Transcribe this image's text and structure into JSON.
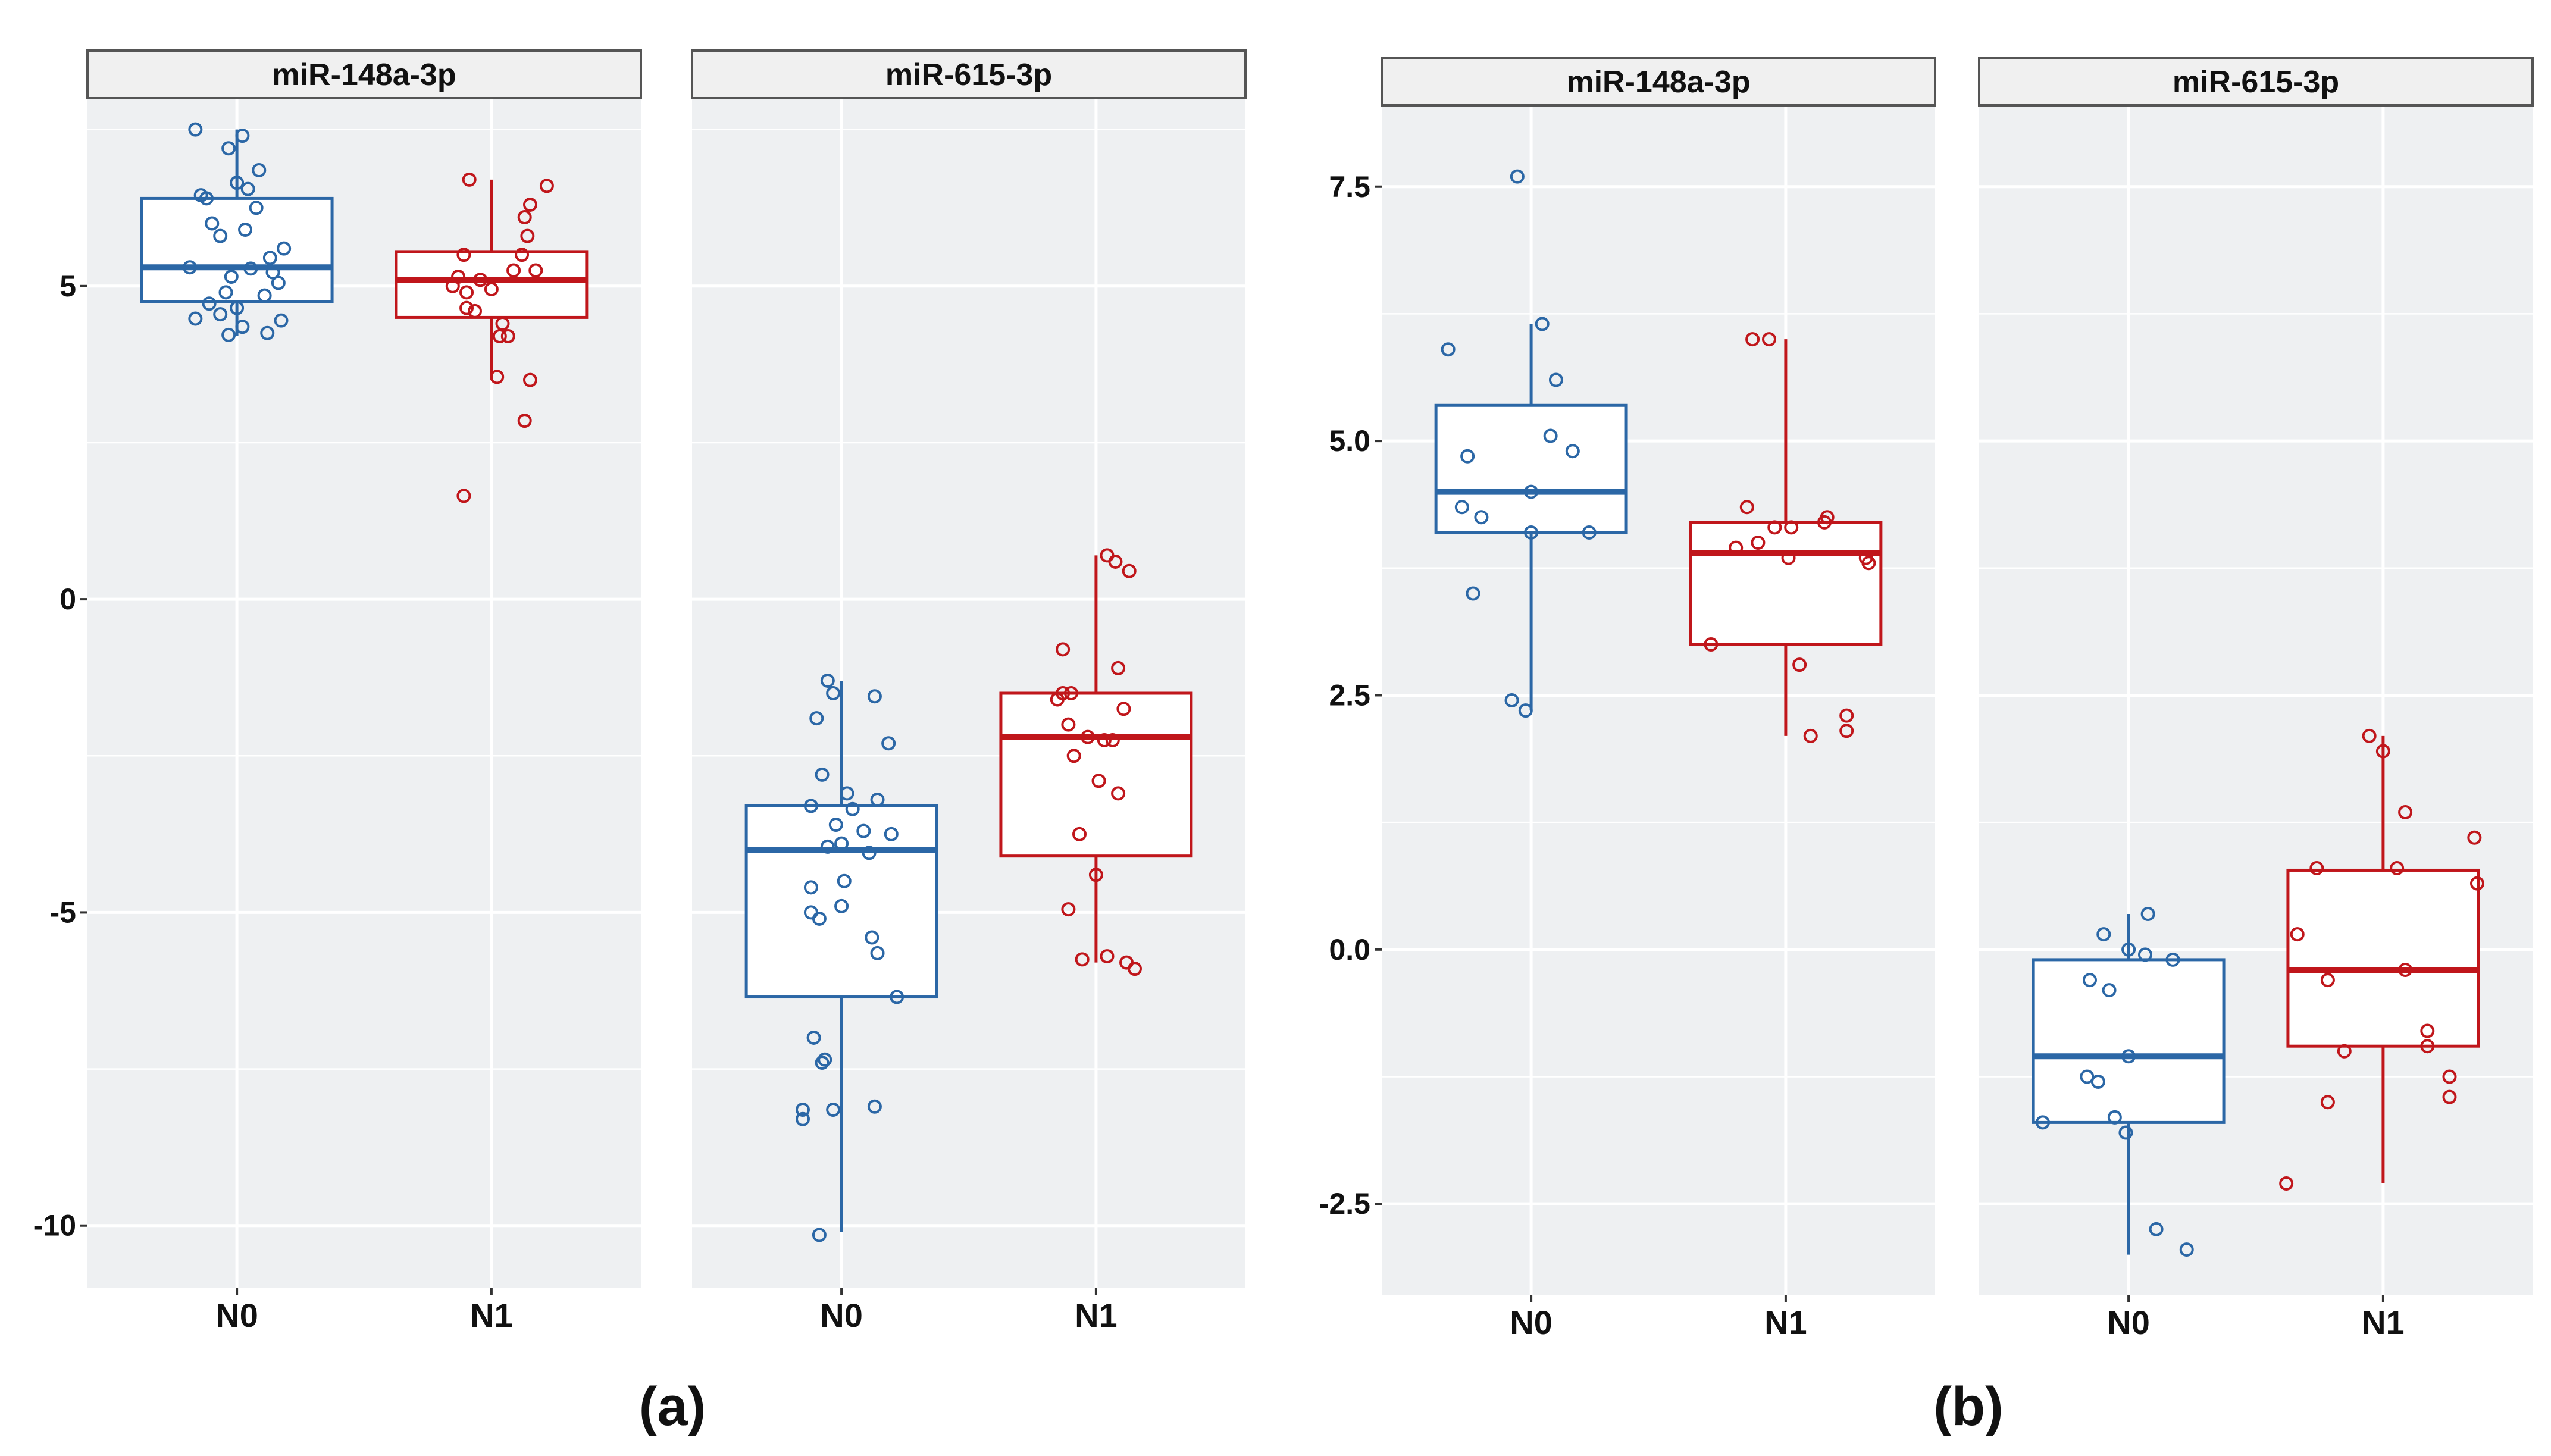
{
  "colors": {
    "n0": "#2b67a6",
    "n1": "#c0161b",
    "panel_bg": "#eef0f2",
    "grid": "#ffffff",
    "strip_bg": "#f0f0f0",
    "strip_border": "#555555"
  },
  "figure_labels": [
    "(a)",
    "(b)"
  ],
  "chart_data": [
    {
      "type": "box",
      "figure_label": "(a)",
      "facet": "miR-148a-3p",
      "categories": [
        "N0",
        "N1"
      ],
      "y_ticks": [
        5,
        0,
        -5,
        -10
      ],
      "ylim": [
        -11,
        8
      ],
      "grid": true,
      "series": [
        {
          "group": "N0",
          "color": "#2b67a6",
          "box": {
            "q1": 4.75,
            "median": 5.3,
            "q3": 6.4,
            "whisker_low": 4.2,
            "whisker_high": 7.5
          },
          "points": [
            [
              -0.15,
              7.5
            ],
            [
              0.02,
              7.4
            ],
            [
              -0.03,
              7.2
            ],
            [
              0.08,
              6.85
            ],
            [
              0.0,
              6.65
            ],
            [
              0.04,
              6.55
            ],
            [
              -0.13,
              6.45
            ],
            [
              -0.11,
              6.4
            ],
            [
              0.07,
              6.25
            ],
            [
              -0.09,
              6.0
            ],
            [
              0.03,
              5.9
            ],
            [
              -0.06,
              5.8
            ],
            [
              0.17,
              5.6
            ],
            [
              0.12,
              5.45
            ],
            [
              -0.17,
              5.3
            ],
            [
              0.05,
              5.28
            ],
            [
              0.13,
              5.22
            ],
            [
              -0.02,
              5.15
            ],
            [
              0.15,
              5.05
            ],
            [
              -0.04,
              4.9
            ],
            [
              0.1,
              4.85
            ],
            [
              -0.1,
              4.72
            ],
            [
              0.0,
              4.65
            ],
            [
              -0.06,
              4.55
            ],
            [
              -0.15,
              4.48
            ],
            [
              0.16,
              4.45
            ],
            [
              0.02,
              4.35
            ],
            [
              -0.03,
              4.22
            ],
            [
              0.11,
              4.25
            ]
          ]
        },
        {
          "group": "N1",
          "color": "#c0161b",
          "box": {
            "q1": 4.5,
            "median": 5.1,
            "q3": 5.55,
            "whisker_low": 3.5,
            "whisker_high": 6.7
          },
          "points": [
            [
              -0.08,
              6.7
            ],
            [
              0.2,
              6.6
            ],
            [
              0.14,
              6.3
            ],
            [
              0.12,
              6.1
            ],
            [
              0.13,
              5.8
            ],
            [
              0.11,
              5.5
            ],
            [
              -0.1,
              5.5
            ],
            [
              0.16,
              5.25
            ],
            [
              0.08,
              5.25
            ],
            [
              -0.12,
              5.15
            ],
            [
              -0.04,
              5.1
            ],
            [
              -0.09,
              4.9
            ],
            [
              -0.14,
              5.0
            ],
            [
              0.0,
              4.95
            ],
            [
              -0.09,
              4.65
            ],
            [
              -0.06,
              4.6
            ],
            [
              0.04,
              4.4
            ],
            [
              0.03,
              4.2
            ],
            [
              0.06,
              4.2
            ],
            [
              0.14,
              3.5
            ],
            [
              0.02,
              3.55
            ],
            [
              0.12,
              2.85
            ],
            [
              -0.1,
              1.65
            ]
          ]
        }
      ]
    },
    {
      "type": "box",
      "figure_label": "(a)",
      "facet": "miR-615-3p",
      "categories": [
        "N0",
        "N1"
      ],
      "y_ticks": [
        5,
        0,
        -5,
        -10
      ],
      "ylim": [
        -11,
        8
      ],
      "grid": true,
      "series": [
        {
          "group": "N0",
          "color": "#2b67a6",
          "box": {
            "q1": -6.35,
            "median": -4.0,
            "q3": -3.3,
            "whisker_low": -10.1,
            "whisker_high": -1.3
          },
          "points": [
            [
              -0.05,
              -1.3
            ],
            [
              -0.03,
              -1.5
            ],
            [
              0.12,
              -1.55
            ],
            [
              -0.09,
              -1.9
            ],
            [
              0.17,
              -2.3
            ],
            [
              -0.07,
              -2.8
            ],
            [
              0.02,
              -3.1
            ],
            [
              0.13,
              -3.2
            ],
            [
              -0.11,
              -3.3
            ],
            [
              0.04,
              -3.35
            ],
            [
              -0.02,
              -3.6
            ],
            [
              0.08,
              -3.7
            ],
            [
              0.18,
              -3.75
            ],
            [
              0.0,
              -3.9
            ],
            [
              -0.05,
              -3.95
            ],
            [
              0.1,
              -4.05
            ],
            [
              -0.11,
              -4.6
            ],
            [
              0.01,
              -4.5
            ],
            [
              0.0,
              -4.9
            ],
            [
              -0.11,
              -5.0
            ],
            [
              -0.08,
              -5.1
            ],
            [
              0.11,
              -5.4
            ],
            [
              0.13,
              -5.65
            ],
            [
              0.2,
              -6.35
            ],
            [
              -0.1,
              -7.0
            ],
            [
              -0.06,
              -7.35
            ],
            [
              -0.07,
              -7.4
            ],
            [
              0.12,
              -8.1
            ],
            [
              -0.03,
              -8.15
            ],
            [
              -0.14,
              -8.15
            ],
            [
              -0.14,
              -8.3
            ],
            [
              -0.08,
              -10.15
            ]
          ]
        },
        {
          "group": "N1",
          "color": "#c0161b",
          "box": {
            "q1": -4.1,
            "median": -2.2,
            "q3": -1.5,
            "whisker_low": -5.8,
            "whisker_high": 0.7
          },
          "points": [
            [
              0.04,
              0.7
            ],
            [
              0.07,
              0.6
            ],
            [
              0.12,
              0.45
            ],
            [
              -0.12,
              -0.8
            ],
            [
              0.08,
              -1.1
            ],
            [
              -0.12,
              -1.5
            ],
            [
              -0.09,
              -1.5
            ],
            [
              -0.14,
              -1.6
            ],
            [
              0.1,
              -1.75
            ],
            [
              -0.1,
              -2.0
            ],
            [
              -0.03,
              -2.2
            ],
            [
              0.03,
              -2.25
            ],
            [
              0.06,
              -2.25
            ],
            [
              -0.08,
              -2.5
            ],
            [
              0.01,
              -2.9
            ],
            [
              0.08,
              -3.1
            ],
            [
              -0.06,
              -3.75
            ],
            [
              0.0,
              -4.4
            ],
            [
              -0.1,
              -4.95
            ],
            [
              0.04,
              -5.7
            ],
            [
              -0.05,
              -5.75
            ],
            [
              0.11,
              -5.8
            ],
            [
              0.14,
              -5.9
            ]
          ]
        }
      ]
    },
    {
      "type": "box",
      "figure_label": "(b)",
      "facet": "miR-148a-3p",
      "categories": [
        "N0",
        "N1"
      ],
      "y_ticks": [
        7.5,
        5.0,
        2.5,
        0.0,
        -2.5
      ],
      "ylim": [
        -3.4,
        8.3
      ],
      "grid": true,
      "series": [
        {
          "group": "N0",
          "color": "#2b67a6",
          "box": {
            "q1": 4.1,
            "median": 4.5,
            "q3": 5.35,
            "whisker_low": 2.35,
            "whisker_high": 6.15
          },
          "points": [
            [
              -0.05,
              7.6
            ],
            [
              0.04,
              6.15
            ],
            [
              -0.3,
              5.9
            ],
            [
              0.09,
              5.6
            ],
            [
              0.15,
              4.9
            ],
            [
              -0.23,
              4.85
            ],
            [
              0.07,
              5.05
            ],
            [
              -0.25,
              4.35
            ],
            [
              -0.18,
              4.25
            ],
            [
              0.0,
              4.5
            ],
            [
              0.0,
              4.1
            ],
            [
              0.21,
              4.1
            ],
            [
              -0.21,
              3.5
            ],
            [
              -0.07,
              2.45
            ],
            [
              -0.02,
              2.35
            ]
          ]
        },
        {
          "group": "N1",
          "color": "#c0161b",
          "box": {
            "q1": 3.0,
            "median": 3.9,
            "q3": 4.2,
            "whisker_low": 2.1,
            "whisker_high": 6.0
          },
          "points": [
            [
              -0.06,
              6.0
            ],
            [
              -0.12,
              6.0
            ],
            [
              -0.14,
              4.35
            ],
            [
              0.15,
              4.25
            ],
            [
              0.14,
              4.2
            ],
            [
              0.02,
              4.15
            ],
            [
              -0.04,
              4.15
            ],
            [
              -0.1,
              4.0
            ],
            [
              -0.18,
              3.95
            ],
            [
              0.01,
              3.85
            ],
            [
              0.29,
              3.85
            ],
            [
              0.3,
              3.8
            ],
            [
              -0.27,
              3.0
            ],
            [
              0.05,
              2.8
            ],
            [
              0.22,
              2.3
            ],
            [
              0.22,
              2.15
            ],
            [
              0.09,
              2.1
            ]
          ]
        }
      ]
    },
    {
      "type": "box",
      "figure_label": "(b)",
      "facet": "miR-615-3p",
      "categories": [
        "N0",
        "N1"
      ],
      "y_ticks": [
        7.5,
        5.0,
        2.5,
        0.0,
        -2.5
      ],
      "ylim": [
        -3.4,
        8.3
      ],
      "grid": true,
      "series": [
        {
          "group": "N0",
          "color": "#2b67a6",
          "box": {
            "q1": -1.7,
            "median": -1.05,
            "q3": -0.1,
            "whisker_low": -3.0,
            "whisker_high": 0.35
          },
          "points": [
            [
              0.07,
              0.35
            ],
            [
              -0.09,
              0.15
            ],
            [
              0.0,
              0.0
            ],
            [
              0.06,
              -0.05
            ],
            [
              0.16,
              -0.1
            ],
            [
              -0.14,
              -0.3
            ],
            [
              -0.07,
              -0.4
            ],
            [
              0.0,
              -1.05
            ],
            [
              -0.15,
              -1.25
            ],
            [
              -0.11,
              -1.3
            ],
            [
              -0.31,
              -1.7
            ],
            [
              -0.05,
              -1.65
            ],
            [
              -0.01,
              -1.8
            ],
            [
              0.1,
              -2.75
            ],
            [
              0.21,
              -2.95
            ]
          ]
        },
        {
          "group": "N1",
          "color": "#c0161b",
          "box": {
            "q1": -0.95,
            "median": -0.2,
            "q3": 0.78,
            "whisker_low": -2.3,
            "whisker_high": 2.1
          },
          "points": [
            [
              -0.05,
              2.1
            ],
            [
              0.0,
              1.95
            ],
            [
              0.08,
              1.35
            ],
            [
              0.33,
              1.1
            ],
            [
              -0.24,
              0.8
            ],
            [
              0.05,
              0.8
            ],
            [
              0.34,
              0.65
            ],
            [
              -0.31,
              0.15
            ],
            [
              -0.2,
              -0.3
            ],
            [
              0.08,
              -0.2
            ],
            [
              0.16,
              -0.8
            ],
            [
              -0.14,
              -1.0
            ],
            [
              0.16,
              -0.95
            ],
            [
              0.24,
              -1.25
            ],
            [
              0.24,
              -1.45
            ],
            [
              -0.2,
              -1.5
            ],
            [
              -0.35,
              -2.3
            ]
          ]
        }
      ]
    }
  ]
}
